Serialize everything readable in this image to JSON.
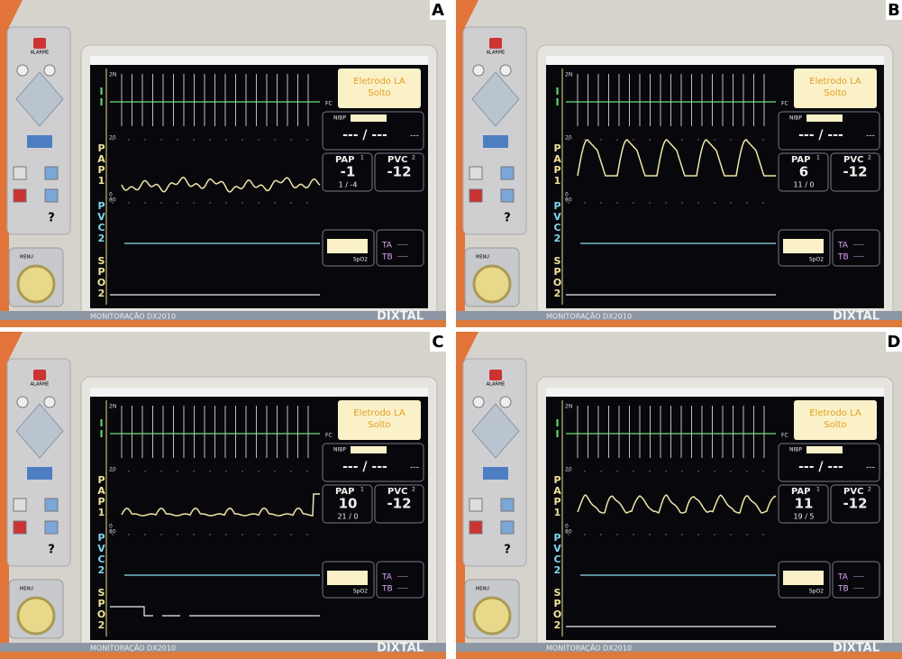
{
  "panels": [
    {
      "label": "A",
      "pap_value": "-1",
      "pap_range": "1 / -4"
    },
    {
      "label": "B",
      "pap_value": "6",
      "pap_range": "11 / 0"
    },
    {
      "label": "C",
      "pap_value": "10",
      "pap_range": "21 / 0"
    },
    {
      "label": "D",
      "pap_value": "11",
      "pap_range": "19 / 5"
    }
  ],
  "monitor": {
    "alarm_message_1": "Eletrodo LA",
    "alarm_message_2": "Solto",
    "fc_label": "FC",
    "nibp_label": "NIBP",
    "nibp_value": "--- / ---",
    "nibp_dash": "---",
    "pap_label": "PAP",
    "pap_channel": "1",
    "pvc_label": "PVC",
    "pvc_channel": "2",
    "pvc_value": "-12",
    "spo2_label": "SpO2",
    "ta_label": "TA",
    "tb_label": "TB",
    "ta_value": "----",
    "tb_value": "----",
    "lead_trace": "II",
    "pap_trace": "PAP1",
    "pvc_trace": "PVC2",
    "spo2_trace": "SPO2",
    "ecg_scale": "2N",
    "pap_scale_top": "20",
    "pap_scale_bottom": "0",
    "pvc_scale": "80",
    "alarm_button": "ALARME",
    "menu_button": "MENU",
    "help_button": "?",
    "brand": "DIXTAL",
    "model": "MONITORAÇÃO DX2010"
  }
}
